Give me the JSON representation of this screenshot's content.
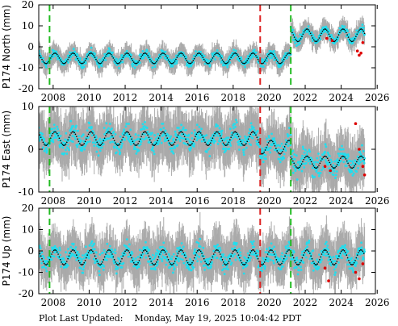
{
  "chart_data": [
    {
      "type": "scatter",
      "station": "P174",
      "component": "North",
      "ylabel": "P174 North (mm)",
      "xlim": [
        2007.2,
        2025.9
      ],
      "ylim": [
        -20,
        20
      ],
      "xticks": [
        2008,
        2010,
        2012,
        2014,
        2016,
        2018,
        2020,
        2022,
        2024,
        2026
      ],
      "yticks": [
        -20,
        -10,
        0,
        10,
        20
      ],
      "offset_lines": [
        {
          "x": 2007.8,
          "color": "#22bb22",
          "style": "dashed"
        },
        {
          "x": 2019.5,
          "color": "#dd2222",
          "style": "dashed"
        },
        {
          "x": 2021.2,
          "color": "#22bb22",
          "style": "dashed"
        }
      ],
      "series": [
        {
          "role": "error_bars",
          "color": "#aaaaaa",
          "error_mm": 4
        },
        {
          "role": "daily_positions",
          "color": "#22ddee",
          "segments": [
            {
              "x0": 2007.2,
              "x1": 2021.2,
              "level": -5.5,
              "seasonal_amp": 2.5
            },
            {
              "x0": 2021.2,
              "x1": 2025.3,
              "level": 5.5,
              "seasonal_amp": 3
            }
          ]
        },
        {
          "role": "model_fit",
          "color": "#000000"
        },
        {
          "role": "rapid_solutions",
          "color": "#dd0000",
          "x": [
            2023.2,
            2023.5,
            2024.9,
            2025.0,
            2025.1,
            2025.2
          ],
          "y": [
            4,
            3,
            -2,
            -4,
            -3,
            2
          ]
        }
      ]
    },
    {
      "type": "scatter",
      "station": "P174",
      "component": "East",
      "ylabel": "P174 East (mm)",
      "xlim": [
        2007.2,
        2025.9
      ],
      "ylim": [
        -10,
        10
      ],
      "xticks": [
        2008,
        2010,
        2012,
        2014,
        2016,
        2018,
        2020,
        2022,
        2024,
        2026
      ],
      "yticks": [
        -10,
        0,
        10
      ],
      "offset_lines": [
        {
          "x": 2007.8,
          "color": "#22bb22",
          "style": "dashed"
        },
        {
          "x": 2019.5,
          "color": "#dd2222",
          "style": "dashed"
        },
        {
          "x": 2021.2,
          "color": "#22bb22",
          "style": "dashed"
        }
      ],
      "series": [
        {
          "role": "error_bars",
          "color": "#aaaaaa",
          "error_mm": 5
        },
        {
          "role": "daily_positions",
          "color": "#22ddee",
          "segments": [
            {
              "x0": 2007.2,
              "x1": 2019.5,
              "level": 2.5,
              "seasonal_amp": 1.6
            },
            {
              "x0": 2019.5,
              "x1": 2021.2,
              "level": 0.5,
              "seasonal_amp": 1.6
            },
            {
              "x0": 2021.2,
              "x1": 2025.3,
              "level": -3.0,
              "seasonal_amp": 1.4
            }
          ]
        },
        {
          "role": "model_fit",
          "color": "#000000"
        },
        {
          "role": "rapid_solutions",
          "color": "#dd0000",
          "x": [
            2023.1,
            2023.4,
            2024.8,
            2025.0,
            2025.2,
            2025.3
          ],
          "y": [
            -4,
            -5,
            6,
            0,
            -4,
            -6
          ]
        }
      ]
    },
    {
      "type": "scatter",
      "station": "P174",
      "component": "Up",
      "ylabel": "P174 Up (mm)",
      "xlim": [
        2007.2,
        2025.9
      ],
      "ylim": [
        -20,
        20
      ],
      "xticks": [
        2008,
        2010,
        2012,
        2014,
        2016,
        2018,
        2020,
        2022,
        2024,
        2026
      ],
      "yticks": [
        -20,
        -10,
        0,
        10,
        20
      ],
      "offset_lines": [
        {
          "x": 2007.8,
          "color": "#22bb22",
          "style": "dashed"
        },
        {
          "x": 2019.5,
          "color": "#dd2222",
          "style": "dashed"
        },
        {
          "x": 2021.2,
          "color": "#22bb22",
          "style": "dashed"
        }
      ],
      "series": [
        {
          "role": "error_bars",
          "color": "#aaaaaa",
          "error_mm": 9
        },
        {
          "role": "daily_positions",
          "color": "#22ddee",
          "segments": [
            {
              "x0": 2007.2,
              "x1": 2025.3,
              "level": -3.0,
              "seasonal_amp": 3.5
            }
          ]
        },
        {
          "role": "model_fit",
          "color": "#000000"
        },
        {
          "role": "rapid_solutions",
          "color": "#dd0000",
          "x": [
            2023.1,
            2023.3,
            2024.8,
            2025.0,
            2025.2
          ],
          "y": [
            -8,
            -14,
            -10,
            -13,
            -6
          ]
        }
      ]
    }
  ],
  "footer": {
    "label": "Plot Last Updated:",
    "timestamp": "Monday, May 19, 2025 10:04:42 PDT"
  }
}
